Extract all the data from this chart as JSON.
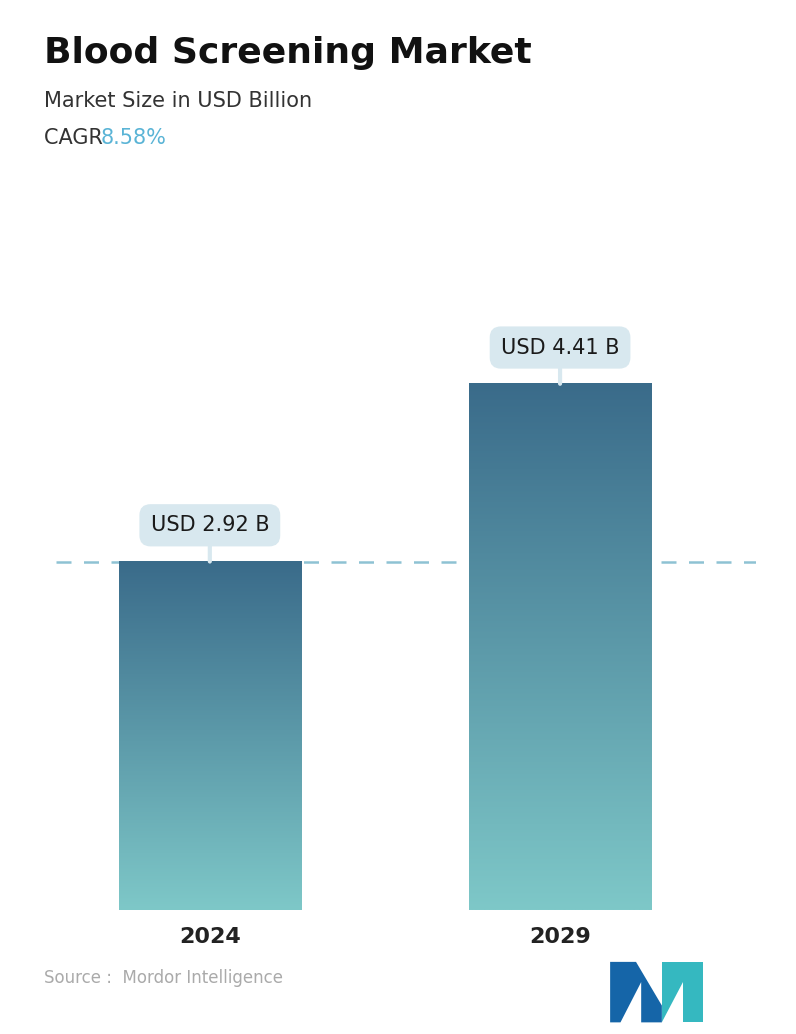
{
  "title": "Blood Screening Market",
  "subtitle": "Market Size in USD Billion",
  "cagr_label": "CAGR ",
  "cagr_value": "8.58%",
  "cagr_color": "#5ab4d6",
  "categories": [
    "2024",
    "2029"
  ],
  "values": [
    2.92,
    4.41
  ],
  "labels": [
    "USD 2.92 B",
    "USD 4.41 B"
  ],
  "bar_color_top": "#3d6e8a",
  "bar_color_bottom": "#7ec8c8",
  "dashed_line_color": "#7ab8cc",
  "dashed_line_value": 2.92,
  "source_text": "Source :  Mordor Intelligence",
  "source_color": "#aaaaaa",
  "background_color": "#ffffff",
  "callout_bg": "#d8e8ef",
  "callout_text_color": "#1a1a1a",
  "ylim": [
    0,
    5.2
  ],
  "title_fontsize": 26,
  "subtitle_fontsize": 15,
  "cagr_fontsize": 15,
  "tick_fontsize": 16,
  "label_fontsize": 15,
  "source_fontsize": 12
}
